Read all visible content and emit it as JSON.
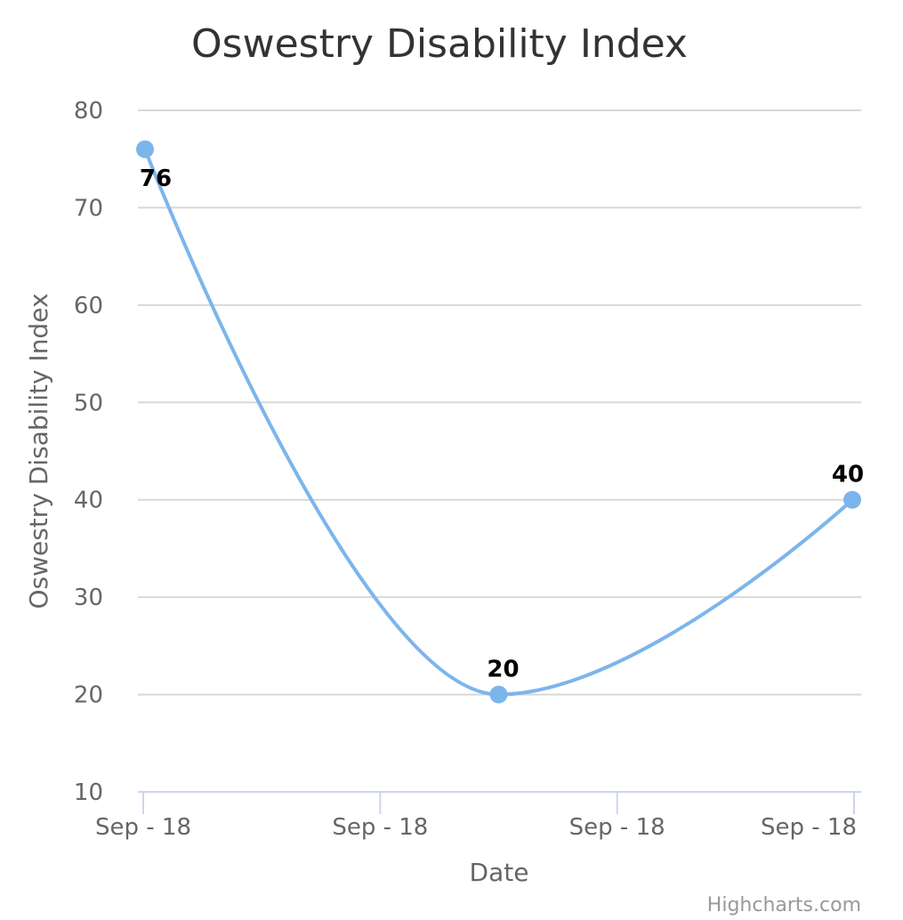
{
  "chart_data": {
    "type": "line",
    "title": "Oswestry Disability Index",
    "xlabel": "Date",
    "ylabel": "Oswestry Disability Index",
    "x_tick_labels": [
      "Sep - 18",
      "Sep - 18",
      "Sep - 18",
      "Sep - 18"
    ],
    "ylim": [
      10,
      80
    ],
    "y_ticks": [
      10,
      20,
      30,
      40,
      50,
      60,
      70,
      80
    ],
    "grid": true,
    "legend": "none",
    "series": [
      {
        "values": [
          76,
          20,
          40
        ],
        "color": "#7cb5ec"
      }
    ],
    "credits": "Highcharts.com"
  }
}
